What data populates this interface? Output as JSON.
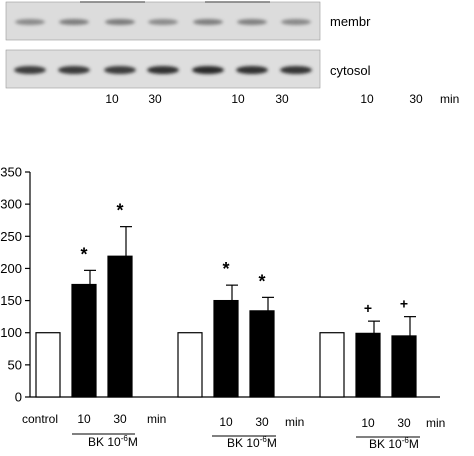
{
  "blot": {
    "row_labels": [
      "membr",
      "cytosol"
    ],
    "lane_times": [
      "10",
      "30",
      "10",
      "30",
      "10",
      "30"
    ],
    "unit": "min"
  },
  "chart_data": {
    "type": "bar",
    "title": "",
    "xlabel": "",
    "ylabel": "",
    "ylim": [
      0,
      350
    ],
    "yticks": [
      0,
      50,
      100,
      150,
      200,
      250,
      300,
      350
    ],
    "grid": false,
    "legend": "none",
    "groups": [
      {
        "bars": [
          {
            "label": "control",
            "value": 100,
            "error": 0,
            "fill": "white",
            "sig": ""
          },
          {
            "label": "10",
            "value": 175,
            "error": 22,
            "fill": "black",
            "sig": "*"
          },
          {
            "label": "30",
            "value": 219,
            "error": 46,
            "fill": "black",
            "sig": "*"
          }
        ],
        "unit": "min",
        "treatment": {
          "prefix": "BK 10",
          "exponent": "-6",
          "suffix": "M"
        }
      },
      {
        "bars": [
          {
            "label": "",
            "value": 100,
            "error": 0,
            "fill": "white",
            "sig": ""
          },
          {
            "label": "10",
            "value": 150,
            "error": 24,
            "fill": "black",
            "sig": "*"
          },
          {
            "label": "30",
            "value": 134,
            "error": 21,
            "fill": "black",
            "sig": "*"
          }
        ],
        "unit": "min",
        "treatment": {
          "prefix": "BK 10",
          "exponent": "-6",
          "suffix": "M"
        }
      },
      {
        "bars": [
          {
            "label": "",
            "value": 100,
            "error": 0,
            "fill": "white",
            "sig": ""
          },
          {
            "label": "10",
            "value": 99,
            "error": 19,
            "fill": "black",
            "sig": "+"
          },
          {
            "label": "30",
            "value": 95,
            "error": 30,
            "fill": "black",
            "sig": "+"
          }
        ],
        "unit": "min",
        "treatment": {
          "prefix": "BK 10",
          "exponent": "-6",
          "suffix": "M"
        }
      }
    ]
  }
}
